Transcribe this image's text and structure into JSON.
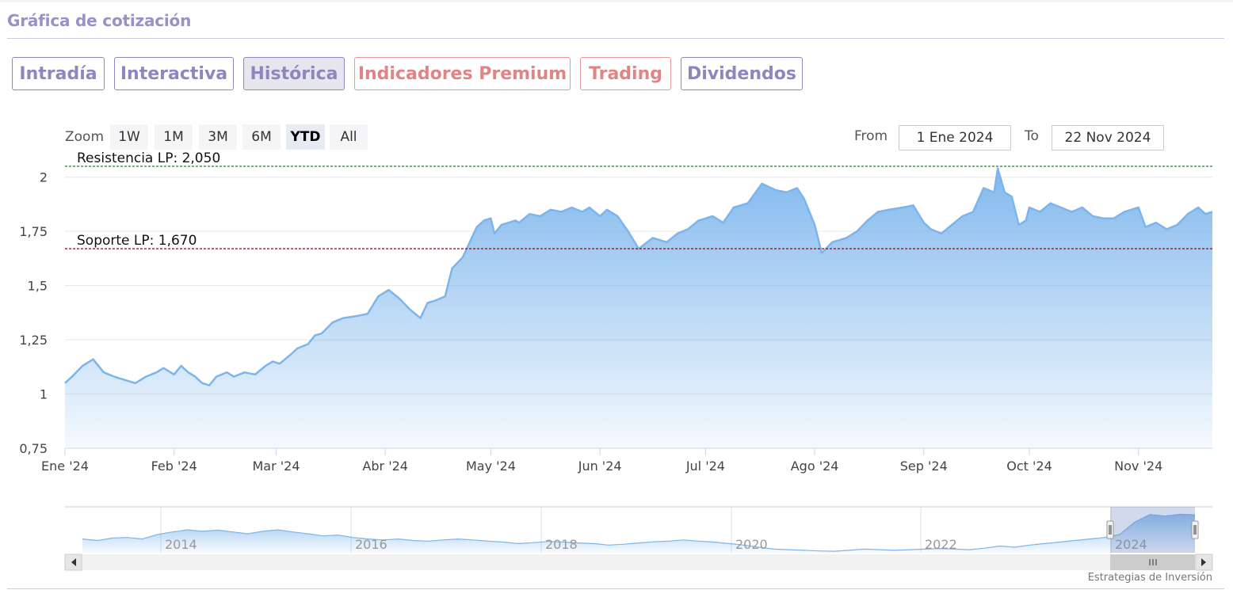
{
  "header": {
    "title": "Gráfica de cotización"
  },
  "tabs": [
    {
      "label": "Intradía",
      "style": "normal"
    },
    {
      "label": "Interactiva",
      "style": "normal"
    },
    {
      "label": "Histórica",
      "style": "active"
    },
    {
      "label": "Indicadores Premium",
      "style": "premium"
    },
    {
      "label": "Trading",
      "style": "premium"
    },
    {
      "label": "Dividendos",
      "style": "normal"
    }
  ],
  "zoom": {
    "label": "Zoom",
    "buttons": [
      "1W",
      "1M",
      "3M",
      "6M",
      "YTD",
      "All"
    ],
    "selected": "YTD"
  },
  "range": {
    "from_label": "From",
    "from_value": "1 Ene 2024",
    "to_label": "To",
    "to_value": "22 Nov 2024"
  },
  "colors": {
    "accent": "#9b90c5",
    "premium": "#e08585",
    "series": "#7cb5ec",
    "resistance": "#1a8a3a",
    "support": "#8b1a2a"
  },
  "chart_data": {
    "type": "area",
    "title": "",
    "xlabel": "",
    "ylabel": "",
    "x_ticks": [
      "Ene '24",
      "Feb '24",
      "Mar '24",
      "Abr '24",
      "May '24",
      "Jun '24",
      "Jul '24",
      "Ago '24",
      "Sep '24",
      "Oct '24",
      "Nov '24"
    ],
    "y_ticks": [
      "0,75",
      "1",
      "1,25",
      "1,5",
      "1,75",
      "2"
    ],
    "ylim": [
      0.75,
      2.05
    ],
    "x_range": [
      "2024-01-01",
      "2024-11-22"
    ],
    "grid": true,
    "series": [
      {
        "x": [
          "2024-01-01",
          "2024-01-03",
          "2024-01-06",
          "2024-01-09",
          "2024-01-12",
          "2024-01-15",
          "2024-01-17",
          "2024-01-21",
          "2024-01-24",
          "2024-01-27",
          "2024-01-29",
          "2024-02-01",
          "2024-02-03",
          "2024-02-05",
          "2024-02-07",
          "2024-02-09",
          "2024-02-11",
          "2024-02-13",
          "2024-02-16",
          "2024-02-18",
          "2024-02-21",
          "2024-02-24",
          "2024-02-27",
          "2024-02-29",
          "2024-03-02",
          "2024-03-05",
          "2024-03-07",
          "2024-03-10",
          "2024-03-12",
          "2024-03-14",
          "2024-03-17",
          "2024-03-20",
          "2024-03-24",
          "2024-03-27",
          "2024-03-30",
          "2024-04-02",
          "2024-04-05",
          "2024-04-08",
          "2024-04-11",
          "2024-04-13",
          "2024-04-15",
          "2024-04-18",
          "2024-04-20",
          "2024-04-23",
          "2024-04-25",
          "2024-04-27",
          "2024-04-29",
          "2024-05-01",
          "2024-05-02",
          "2024-05-04",
          "2024-05-06",
          "2024-05-08",
          "2024-05-09",
          "2024-05-12",
          "2024-05-15",
          "2024-05-18",
          "2024-05-21",
          "2024-05-24",
          "2024-05-27",
          "2024-05-29",
          "2024-06-01",
          "2024-06-03",
          "2024-06-06",
          "2024-06-09",
          "2024-06-12",
          "2024-06-16",
          "2024-06-20",
          "2024-06-23",
          "2024-06-26",
          "2024-06-29",
          "2024-07-03",
          "2024-07-06",
          "2024-07-09",
          "2024-07-13",
          "2024-07-17",
          "2024-07-21",
          "2024-07-24",
          "2024-07-27",
          "2024-07-29",
          "2024-08-01",
          "2024-08-03",
          "2024-08-06",
          "2024-08-10",
          "2024-08-13",
          "2024-08-16",
          "2024-08-19",
          "2024-08-22",
          "2024-08-26",
          "2024-08-29",
          "2024-09-01",
          "2024-09-03",
          "2024-09-06",
          "2024-09-09",
          "2024-09-12",
          "2024-09-15",
          "2024-09-18",
          "2024-09-21",
          "2024-09-22",
          "2024-09-24",
          "2024-09-26",
          "2024-09-28",
          "2024-09-30",
          "2024-10-01",
          "2024-10-04",
          "2024-10-07",
          "2024-10-10",
          "2024-10-13",
          "2024-10-16",
          "2024-10-19",
          "2024-10-22",
          "2024-10-25",
          "2024-10-28",
          "2024-11-01",
          "2024-11-03",
          "2024-11-06",
          "2024-11-09",
          "2024-11-12",
          "2024-11-15",
          "2024-11-18",
          "2024-11-20",
          "2024-11-22"
        ],
        "y": [
          1.05,
          1.08,
          1.13,
          1.16,
          1.1,
          1.08,
          1.07,
          1.05,
          1.08,
          1.1,
          1.12,
          1.09,
          1.13,
          1.1,
          1.08,
          1.05,
          1.04,
          1.08,
          1.1,
          1.08,
          1.1,
          1.09,
          1.13,
          1.15,
          1.14,
          1.18,
          1.21,
          1.23,
          1.27,
          1.28,
          1.33,
          1.35,
          1.36,
          1.37,
          1.45,
          1.48,
          1.44,
          1.39,
          1.35,
          1.42,
          1.43,
          1.45,
          1.58,
          1.63,
          1.7,
          1.77,
          1.8,
          1.81,
          1.74,
          1.78,
          1.79,
          1.8,
          1.79,
          1.83,
          1.82,
          1.85,
          1.84,
          1.86,
          1.84,
          1.86,
          1.82,
          1.85,
          1.82,
          1.75,
          1.67,
          1.72,
          1.7,
          1.74,
          1.76,
          1.8,
          1.82,
          1.79,
          1.86,
          1.88,
          1.97,
          1.94,
          1.93,
          1.95,
          1.9,
          1.78,
          1.65,
          1.7,
          1.72,
          1.75,
          1.8,
          1.84,
          1.85,
          1.86,
          1.87,
          1.79,
          1.76,
          1.74,
          1.78,
          1.82,
          1.84,
          1.95,
          1.93,
          2.04,
          1.93,
          1.91,
          1.78,
          1.8,
          1.86,
          1.84,
          1.88,
          1.86,
          1.84,
          1.86,
          1.82,
          1.81,
          1.81,
          1.84,
          1.86,
          1.77,
          1.79,
          1.76,
          1.78,
          1.83,
          1.86,
          1.83,
          1.84
        ]
      }
    ],
    "reference_lines": [
      {
        "label": "Resistencia LP: 2,050",
        "value": 2.05,
        "style": "dashed",
        "color": "#1a8a3a"
      },
      {
        "label": "Soporte LP: 1,670",
        "value": 1.67,
        "style": "dashed",
        "color": "#8b1a2a"
      }
    ],
    "navigator": {
      "year_labels": [
        "2014",
        "2016",
        "2018",
        "2020",
        "2022",
        "2024"
      ],
      "values": [
        1.05,
        1.0,
        1.08,
        1.1,
        1.05,
        1.2,
        1.28,
        1.35,
        1.3,
        1.34,
        1.28,
        1.22,
        1.3,
        1.35,
        1.28,
        1.22,
        1.15,
        1.18,
        1.1,
        1.05,
        1.02,
        1.05,
        1.0,
        0.98,
        1.02,
        1.05,
        1.02,
        0.98,
        0.95,
        0.9,
        0.93,
        0.97,
        0.95,
        0.92,
        0.9,
        0.85,
        0.88,
        0.92,
        0.96,
        0.98,
        1.02,
        0.98,
        0.95,
        0.9,
        0.85,
        0.78,
        0.72,
        0.7,
        0.68,
        0.66,
        0.65,
        0.68,
        0.72,
        0.7,
        0.68,
        0.7,
        0.72,
        0.74,
        0.72,
        0.7,
        0.75,
        0.82,
        0.78,
        0.85,
        0.9,
        0.95,
        1.0,
        1.05,
        1.1,
        1.2,
        1.6,
        1.85,
        1.8,
        1.86,
        1.84
      ]
    },
    "credit": "Estrategias de Inversión"
  }
}
